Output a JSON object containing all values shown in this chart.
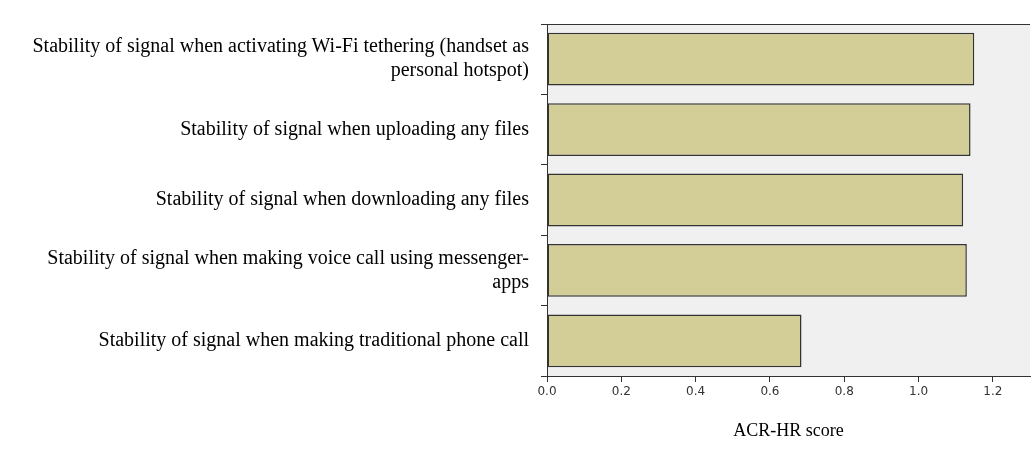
{
  "chart_data": {
    "type": "bar",
    "orientation": "horizontal",
    "xlabel": "ACR-HR score",
    "categories": [
      "Stability of signal when activating Wi-Fi tethering (handset as personal hotspot)",
      "Stability of signal when uploading any files",
      "Stability of signal when downloading any files",
      "Stability of signal when making voice call using messenger-apps",
      "Stability of signal when making traditional phone call"
    ],
    "values": [
      1.15,
      1.14,
      1.12,
      1.13,
      0.685
    ],
    "color": "#d3cd97",
    "xlim": [
      0,
      1.3
    ],
    "xticks": [
      {
        "value": 0,
        "label": "0.0"
      },
      0.2,
      0.4,
      0.6,
      0.8,
      {
        "value": 1,
        "label": "1.0"
      },
      1.2
    ]
  }
}
